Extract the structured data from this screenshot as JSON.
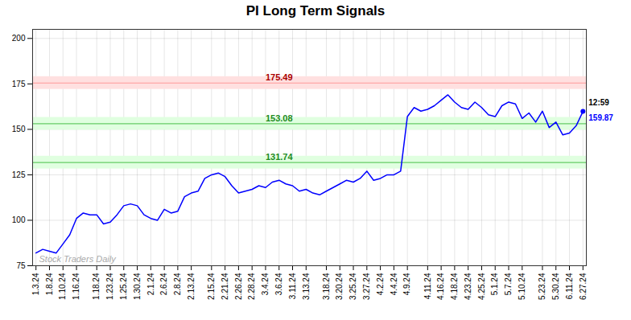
{
  "chart_data": {
    "type": "line",
    "title": "PI Long Term Signals",
    "categories": [
      "1.3.24",
      null,
      "1.8.24",
      null,
      "1.10.24",
      null,
      "1.16.24",
      null,
      null,
      "1.18.24",
      null,
      "1.23.24",
      null,
      "1.25.24",
      null,
      "1.30.24",
      null,
      "2.1.24",
      null,
      "2.6.24",
      null,
      "2.8.24",
      null,
      "2.13.24",
      null,
      null,
      "2.15.24",
      null,
      "2.21.24",
      null,
      "2.26.24",
      null,
      "2.28.24",
      null,
      "3.4.24",
      null,
      "3.6.24",
      null,
      "3.11.24",
      null,
      "3.13.24",
      null,
      null,
      "3.18.24",
      null,
      "3.20.24",
      null,
      "3.25.24",
      null,
      "3.27.24",
      null,
      "4.2.24",
      null,
      "4.4.24",
      null,
      "4.9.24",
      null,
      null,
      "4.11.24",
      null,
      "4.16.24",
      null,
      "4.18.24",
      null,
      "4.23.24",
      null,
      "4.25.24",
      null,
      "5.1.24",
      null,
      "5.7.24",
      null,
      "5.10.24",
      null,
      null,
      "5.23.24",
      null,
      "5.30.24",
      null,
      "6.11.24",
      null,
      "6.27.24"
    ],
    "values": [
      82,
      84,
      83,
      82,
      87,
      92,
      101,
      104,
      103,
      103,
      98,
      99,
      103,
      108,
      109,
      108,
      103,
      101,
      100,
      106,
      104,
      105,
      113,
      115,
      116,
      123,
      125,
      126,
      124,
      119,
      115,
      116,
      117,
      119,
      118,
      121,
      122,
      120,
      119,
      116,
      117,
      115,
      114,
      116,
      118,
      120,
      122,
      121,
      123,
      127,
      122,
      123,
      125,
      125,
      127,
      157,
      162,
      160,
      161,
      163,
      166,
      169,
      165,
      162,
      161,
      165,
      162,
      158,
      157,
      163,
      165,
      164,
      156,
      159,
      154,
      160,
      151,
      154,
      147,
      148,
      152,
      159.87
    ],
    "color": "blue",
    "hlines": [
      {
        "value": 175.49,
        "color": "#ff9999",
        "band_color": "#ffe0e0",
        "label_color": "#aa0000"
      },
      {
        "value": 153.08,
        "color": "#66cc66",
        "band_color": "#e0ffe0",
        "label_color": "#228B22"
      },
      {
        "value": 131.74,
        "color": "#66cc66",
        "band_color": "#e0ffe0",
        "label_color": "#228B22"
      }
    ],
    "annotations": [
      {
        "text": "12:59",
        "color": "black"
      },
      {
        "text": "159.87",
        "color": "blue"
      }
    ],
    "watermark": {
      "text": "Stock Traders Daily",
      "color": "#aaaaaa"
    },
    "ylim": [
      75,
      205
    ],
    "yticks": [
      75,
      100,
      125,
      150,
      175,
      200
    ],
    "grid": true
  }
}
